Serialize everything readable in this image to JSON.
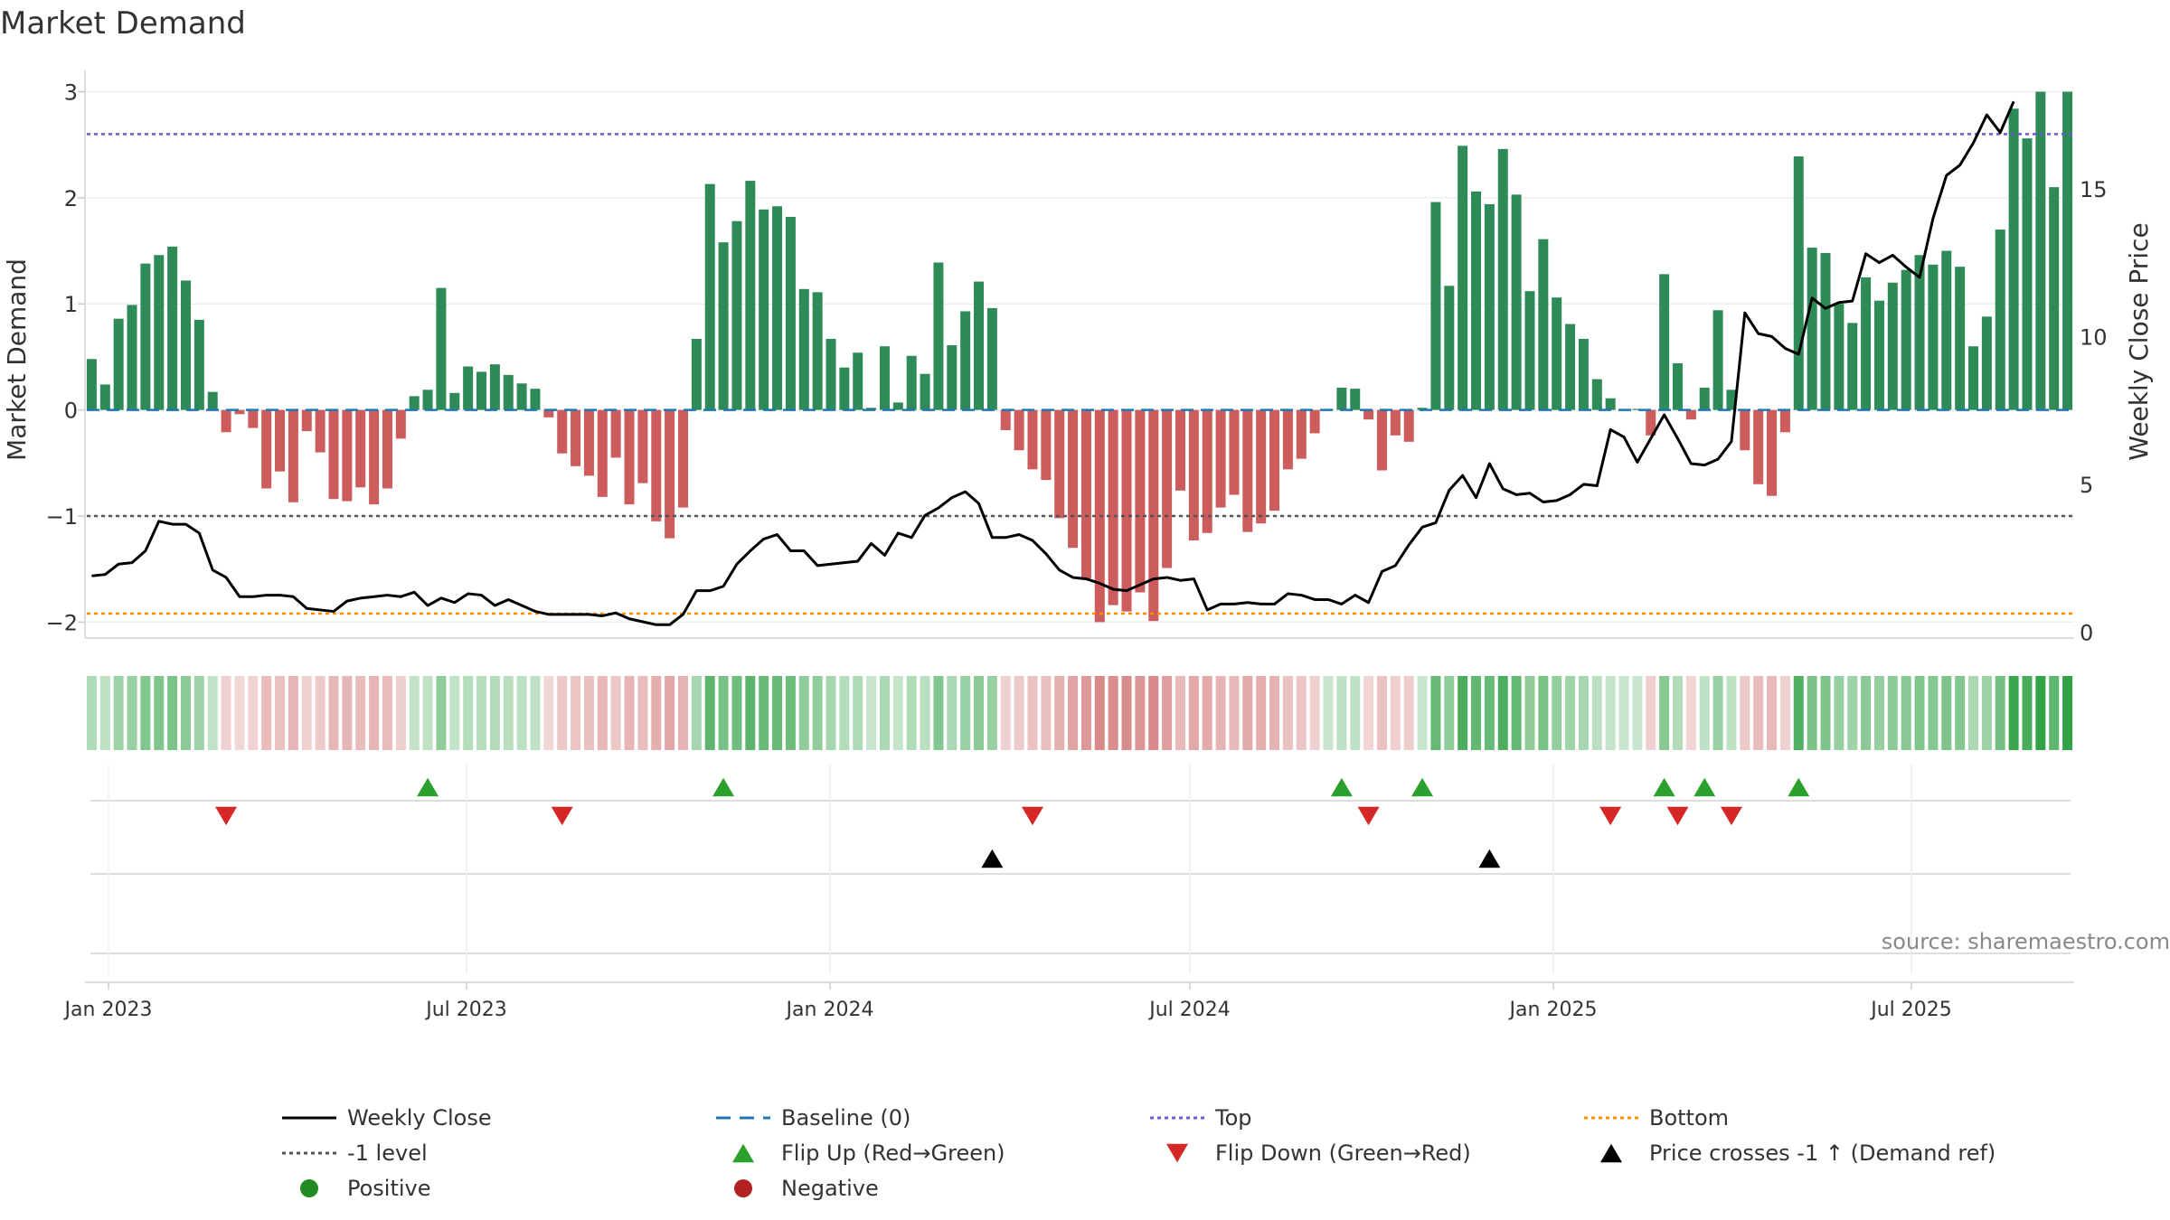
{
  "chart_data": {
    "type": "bar",
    "title": "Market Demand",
    "ylabel_left": "Market Demand",
    "ylabel_right": "Weekly Close Price",
    "ylim_left": [
      -2.15,
      3.2
    ],
    "ylim_right": [
      -0.2,
      19.0
    ],
    "yticks_left": [
      "3",
      "2",
      "1",
      "0",
      "−1",
      "−2"
    ],
    "yticks_right": [
      "15",
      "10",
      "5",
      "0"
    ],
    "xticks": [
      "Jan 2023",
      "Jul 2023",
      "Jan 2024",
      "Jul 2024",
      "Jan 2025",
      "Jul 2025"
    ],
    "source": "source: sharemaestro.com",
    "reference_lines": {
      "top": 2.6,
      "bottom": -1.92,
      "minus_one": -1,
      "baseline": 0
    },
    "demand": [
      0.48,
      0.24,
      0.86,
      0.99,
      1.38,
      1.46,
      1.54,
      1.22,
      0.85,
      0.17,
      -0.21,
      -0.04,
      -0.17,
      -0.74,
      -0.58,
      -0.87,
      -0.2,
      -0.4,
      -0.84,
      -0.86,
      -0.73,
      -0.89,
      -0.74,
      -0.27,
      0.13,
      0.19,
      1.15,
      0.16,
      0.41,
      0.36,
      0.43,
      0.33,
      0.25,
      0.2,
      -0.07,
      -0.41,
      -0.53,
      -0.62,
      -0.82,
      -0.45,
      -0.89,
      -0.69,
      -1.05,
      -1.21,
      -0.92,
      0.67,
      2.13,
      1.58,
      1.78,
      2.16,
      1.89,
      1.92,
      1.82,
      1.14,
      1.11,
      0.67,
      0.4,
      0.54,
      0.02,
      0.6,
      0.07,
      0.51,
      0.34,
      1.39,
      0.61,
      0.93,
      1.21,
      0.96,
      -0.19,
      -0.38,
      -0.56,
      -0.66,
      -1.02,
      -1.3,
      -1.59,
      -2.0,
      -1.84,
      -1.9,
      -1.72,
      -1.99,
      -1.49,
      -0.76,
      -1.23,
      -1.16,
      -0.92,
      -0.8,
      -1.15,
      -1.07,
      -0.95,
      -0.56,
      -0.46,
      -0.22,
      0.01,
      0.21,
      0.2,
      -0.09,
      -0.57,
      -0.24,
      -0.3,
      0.02,
      1.96,
      1.17,
      2.49,
      2.06,
      1.94,
      2.46,
      2.03,
      1.12,
      1.61,
      1.06,
      0.81,
      0.67,
      0.29,
      0.11,
      0.01,
      0.01,
      -0.24,
      1.28,
      0.44,
      -0.09,
      0.21,
      0.94,
      0.19,
      -0.38,
      -0.7,
      -0.81,
      -0.21,
      2.39,
      1.53,
      1.48,
      1.0,
      0.82,
      1.25,
      1.03,
      1.2,
      1.32,
      1.46,
      1.37,
      1.5,
      1.35,
      0.6,
      0.88,
      1.7,
      2.84,
      2.56,
      3.0,
      2.1,
      3.0
    ],
    "weekly_close": [
      1.9,
      1.95,
      2.3,
      2.35,
      2.75,
      3.75,
      3.65,
      3.65,
      3.35,
      2.1,
      1.85,
      1.2,
      1.2,
      1.25,
      1.25,
      1.2,
      0.8,
      0.75,
      0.7,
      1.05,
      1.15,
      1.2,
      1.25,
      1.2,
      1.35,
      0.9,
      1.15,
      1.0,
      1.3,
      1.25,
      0.9,
      1.1,
      0.9,
      0.7,
      0.6,
      0.6,
      0.6,
      0.6,
      0.55,
      0.65,
      0.45,
      0.35,
      0.25,
      0.25,
      0.6,
      1.4,
      1.4,
      1.55,
      2.3,
      2.75,
      3.15,
      3.3,
      2.75,
      2.75,
      2.25,
      2.3,
      2.35,
      2.4,
      3.0,
      2.6,
      3.35,
      3.2,
      3.95,
      4.2,
      4.55,
      4.75,
      4.35,
      3.2,
      3.2,
      3.3,
      3.1,
      2.65,
      2.1,
      1.85,
      1.8,
      1.65,
      1.45,
      1.4,
      1.6,
      1.8,
      1.85,
      1.75,
      1.8,
      0.75,
      0.95,
      0.95,
      1.0,
      0.95,
      0.95,
      1.3,
      1.25,
      1.1,
      1.1,
      0.95,
      1.25,
      1.0,
      2.05,
      2.25,
      2.95,
      3.55,
      3.7,
      4.8,
      5.3,
      4.55,
      5.7,
      4.85,
      4.65,
      4.7,
      4.4,
      4.45,
      4.65,
      5.0,
      4.95,
      6.85,
      6.6,
      5.75,
      6.55,
      7.35,
      6.55,
      5.7,
      5.65,
      5.85,
      6.45,
      10.8,
      10.1,
      10.0,
      9.6,
      9.4,
      11.3,
      10.95,
      11.15,
      11.2,
      12.8,
      12.5,
      12.75,
      12.35,
      12.0,
      14.0,
      15.45,
      15.8,
      16.55,
      17.5,
      16.9,
      17.95
    ],
    "flips_up": [
      25,
      47,
      93,
      99,
      117,
      120,
      127
    ],
    "flips_down": [
      10,
      35,
      70,
      95,
      113,
      118,
      122
    ],
    "price_crosses": [
      67,
      104
    ],
    "legend": [
      {
        "label": "Weekly Close",
        "color": "#000000"
      },
      {
        "label": "Baseline (0)",
        "color": "#1f77b4"
      },
      {
        "label": "Top",
        "color": "#6a5acd"
      },
      {
        "label": "Bottom",
        "color": "#ff8c00"
      },
      {
        "label": "-1 level",
        "color": "#555555"
      },
      {
        "label": "Flip Up (Red→Green)",
        "color": "#2ca02c"
      },
      {
        "label": "Flip Down (Green→Red)",
        "color": "#d62728"
      },
      {
        "label": "Price crosses -1 ↑ (Demand ref)",
        "color": "#000000"
      },
      {
        "label": "Positive",
        "color": "#228b22"
      },
      {
        "label": "Negative",
        "color": "#b22222"
      }
    ],
    "colors": {
      "positive_bar": "#2e8b57",
      "negative_bar": "#cd5c5c",
      "line": "#000000",
      "baseline": "#1f77b4",
      "top": "#6a5acd",
      "bottom": "#ff8c00",
      "minus_one": "#555555",
      "flip_up": "#2ca02c",
      "flip_down": "#d62728",
      "cross": "#000000"
    }
  }
}
